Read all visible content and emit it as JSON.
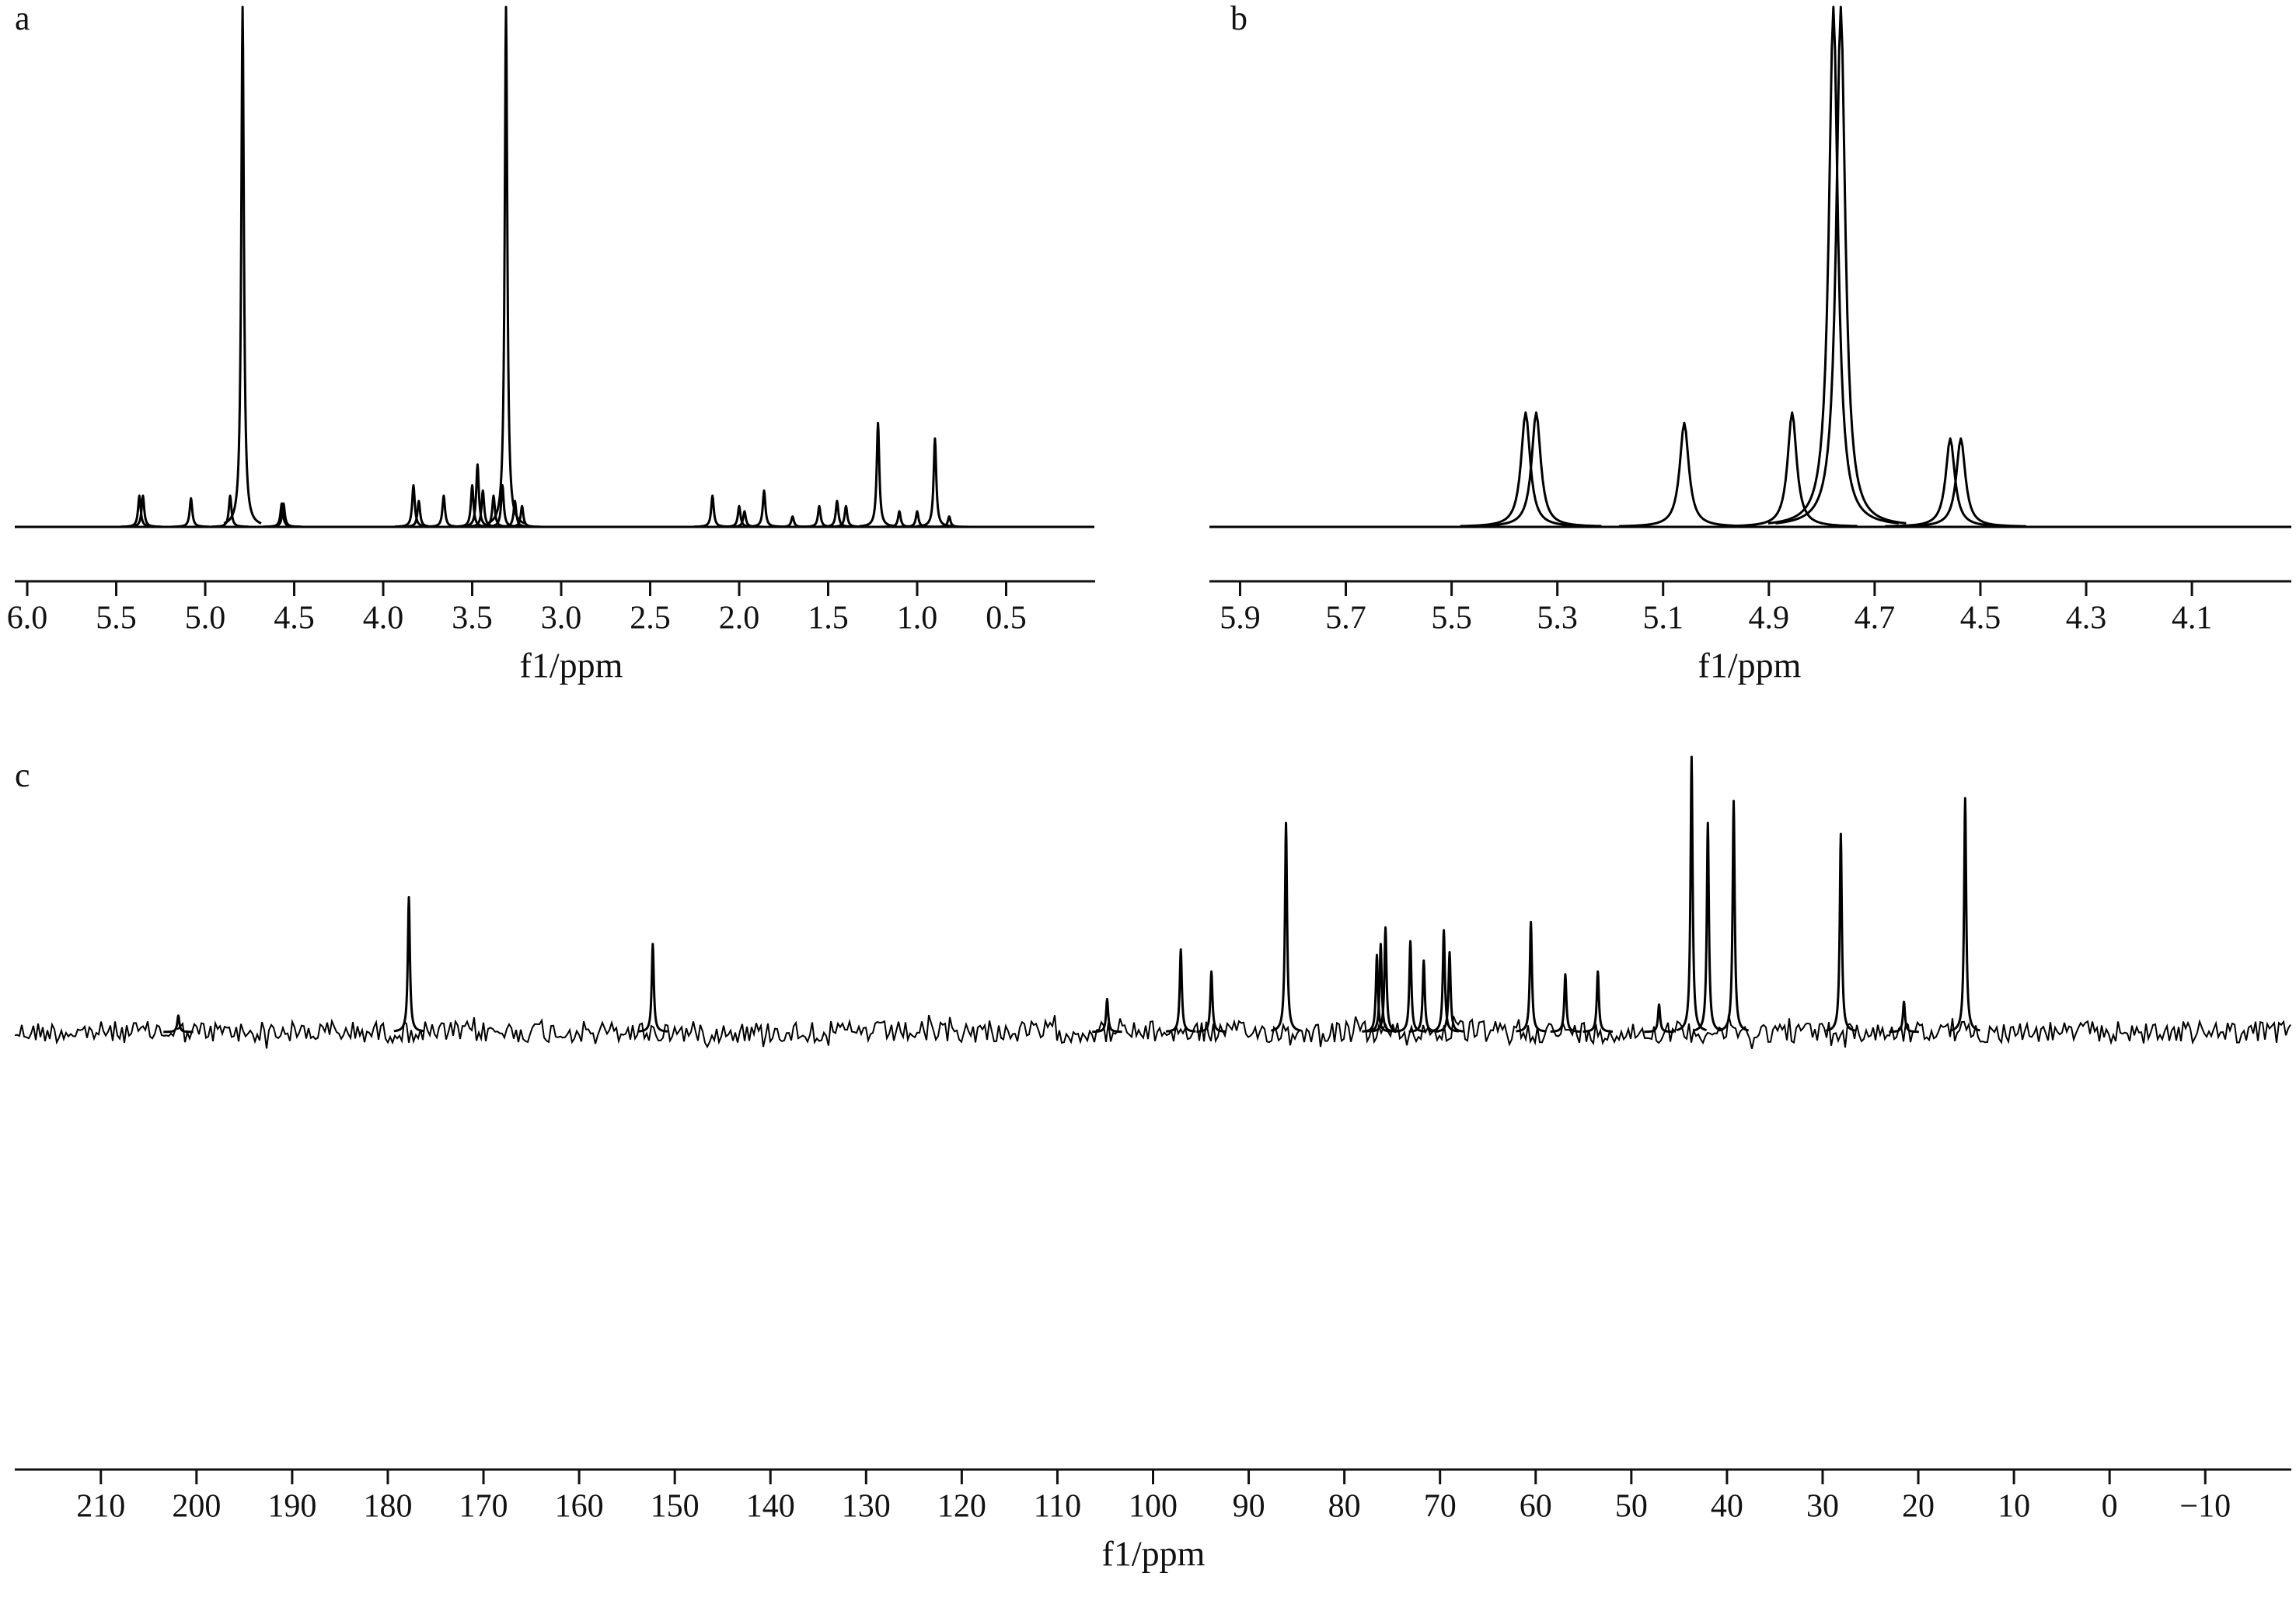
{
  "chart_data": [
    {
      "type": "spectrum",
      "label": "a",
      "xlabel": "f1/ppm",
      "color": "#000000",
      "x": [
        5.37,
        5.35,
        5.08,
        4.86,
        4.79,
        4.57,
        4.56,
        3.83,
        3.8,
        3.66,
        3.5,
        3.47,
        3.44,
        3.38,
        3.33,
        3.31,
        3.26,
        3.22,
        2.15,
        2.0,
        1.97,
        1.86,
        1.7,
        1.55,
        1.45,
        1.4,
        1.22,
        1.1,
        1.0,
        0.9,
        0.82
      ],
      "values": [
        6,
        6,
        5.5,
        6,
        100,
        4.5,
        4.5,
        8,
        5,
        6,
        8,
        12,
        7,
        6,
        8,
        100,
        5,
        4,
        6,
        4,
        3,
        7,
        2,
        4,
        5,
        4,
        20,
        3,
        3,
        17,
        2
      ],
      "xlim": [
        6.07,
        0.0
      ],
      "ylim": [
        0,
        100
      ],
      "xticks": [
        {
          "value": 6,
          "label": "6.0"
        },
        5.5,
        {
          "value": 5,
          "label": "5.0"
        },
        4.5,
        {
          "value": 4,
          "label": "4.0"
        },
        3.5,
        {
          "value": 3,
          "label": "3.0"
        },
        2.5,
        {
          "value": 2,
          "label": "2.0"
        },
        1.5,
        {
          "value": 1,
          "label": "1.0"
        },
        0.5
      ]
    },
    {
      "type": "spectrum",
      "label": "b",
      "xlabel": "f1/ppm",
      "color": "#000000",
      "x": [
        5.36,
        5.34,
        5.06,
        4.856,
        4.778,
        4.764,
        4.557,
        4.537
      ],
      "values": [
        22,
        22,
        20,
        22,
        100,
        100,
        17,
        17
      ],
      "xlim": [
        5.958,
        3.912
      ],
      "ylim": [
        0,
        100
      ],
      "xticks": [
        5.9,
        5.7,
        5.5,
        5.3,
        5.1,
        4.9,
        4.7,
        4.5,
        4.3,
        4.1
      ]
    },
    {
      "type": "spectrum",
      "label": "c",
      "xlabel": "f1/ppm",
      "color": "#000000",
      "x": [
        201.9,
        177.8,
        152.3,
        104.8,
        97.1,
        93.9,
        86.1,
        76.6,
        76.2,
        75.7,
        73.1,
        71.7,
        69.6,
        69.0,
        60.5,
        56.9,
        53.5,
        47.1,
        43.7,
        42.0,
        39.3,
        28.1,
        21.5,
        15.1
      ],
      "values": [
        6,
        49,
        32,
        12,
        30,
        22,
        76,
        28,
        32,
        38,
        33,
        26,
        37,
        29,
        40,
        21,
        22,
        10,
        100,
        76,
        84,
        72,
        11,
        85
      ],
      "xlim": [
        219.0,
        -19.0
      ],
      "ylim": [
        0,
        100
      ],
      "xticks": [
        210,
        200,
        190,
        180,
        170,
        160,
        150,
        140,
        130,
        120,
        110,
        100,
        90,
        80,
        70,
        60,
        50,
        40,
        30,
        20,
        10,
        0,
        {
          "value": -10,
          "label": "−10"
        }
      ]
    }
  ]
}
